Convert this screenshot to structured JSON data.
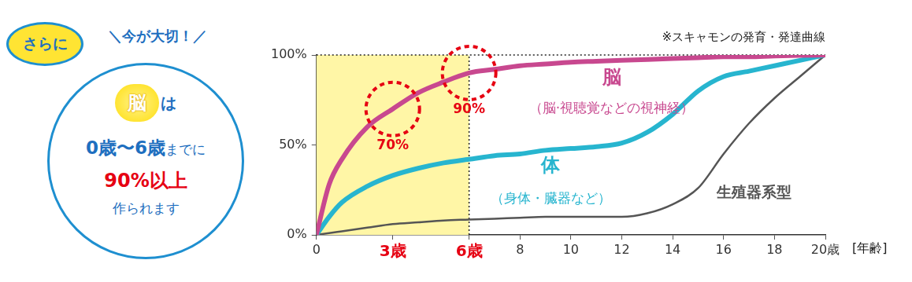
{
  "chart_data": {
    "type": "line",
    "subtitle": "※スキャモンの発育・発達曲線",
    "x_label": "[年齢]",
    "x": [
      0,
      0.5,
      1,
      2,
      3,
      4,
      5,
      6,
      7,
      8,
      9,
      10,
      11,
      12,
      13,
      14,
      15,
      16,
      17,
      18,
      19,
      20
    ],
    "series": [
      {
        "name": "脳",
        "note": "（脳·視聴覚などの視神経）",
        "color": "#c8488f",
        "values": [
          0,
          28,
          42,
          60,
          70,
          79,
          85,
          90,
          92,
          94,
          95,
          96,
          96.5,
          97,
          97.5,
          98,
          98.5,
          99,
          99,
          99.5,
          99.8,
          100
        ]
      },
      {
        "name": "体",
        "note": "（身体・臓器など）",
        "color": "#27b5cf",
        "values": [
          0,
          10,
          18,
          27,
          33,
          37,
          40,
          42,
          44,
          45,
          47,
          48,
          49,
          51,
          57,
          67,
          80,
          88,
          91,
          94,
          97,
          100
        ]
      },
      {
        "name": "生殖器系型",
        "color": "#555555",
        "values": [
          0,
          1,
          2,
          4,
          6,
          7,
          8,
          8.5,
          9,
          9.5,
          10,
          10,
          10,
          10,
          12,
          17,
          26,
          45,
          62,
          76,
          88,
          100
        ]
      }
    ],
    "xlim": [
      0,
      20
    ],
    "xticks": [
      0,
      {
        "value": 3,
        "label": "3歳"
      },
      {
        "value": 6,
        "label": "6歳"
      },
      8,
      10,
      12,
      14,
      16,
      18,
      {
        "value": 20,
        "label": "20歳"
      }
    ],
    "ylim": [
      0,
      100
    ],
    "yticks": [
      {
        "value": 0,
        "label": "0%"
      },
      {
        "value": 50,
        "label": "50%"
      },
      {
        "value": 100,
        "label": "100%"
      }
    ],
    "grid": false,
    "highlight_range": [
      0,
      6
    ],
    "annotations": [
      {
        "text": "70%",
        "x": 3,
        "y": 70,
        "color": "#e60012"
      },
      {
        "text": "90%",
        "x": 6,
        "y": 90,
        "color": "#e60012"
      }
    ]
  },
  "sidebar": {
    "badge": "さらに",
    "tagline": "＼今が大切！／",
    "cloud_text": "脳",
    "cloud_suffix": "は",
    "period": "0歳〜6歳",
    "period_suffix": "までに",
    "amount": "90%以上",
    "closing": "作られます"
  }
}
